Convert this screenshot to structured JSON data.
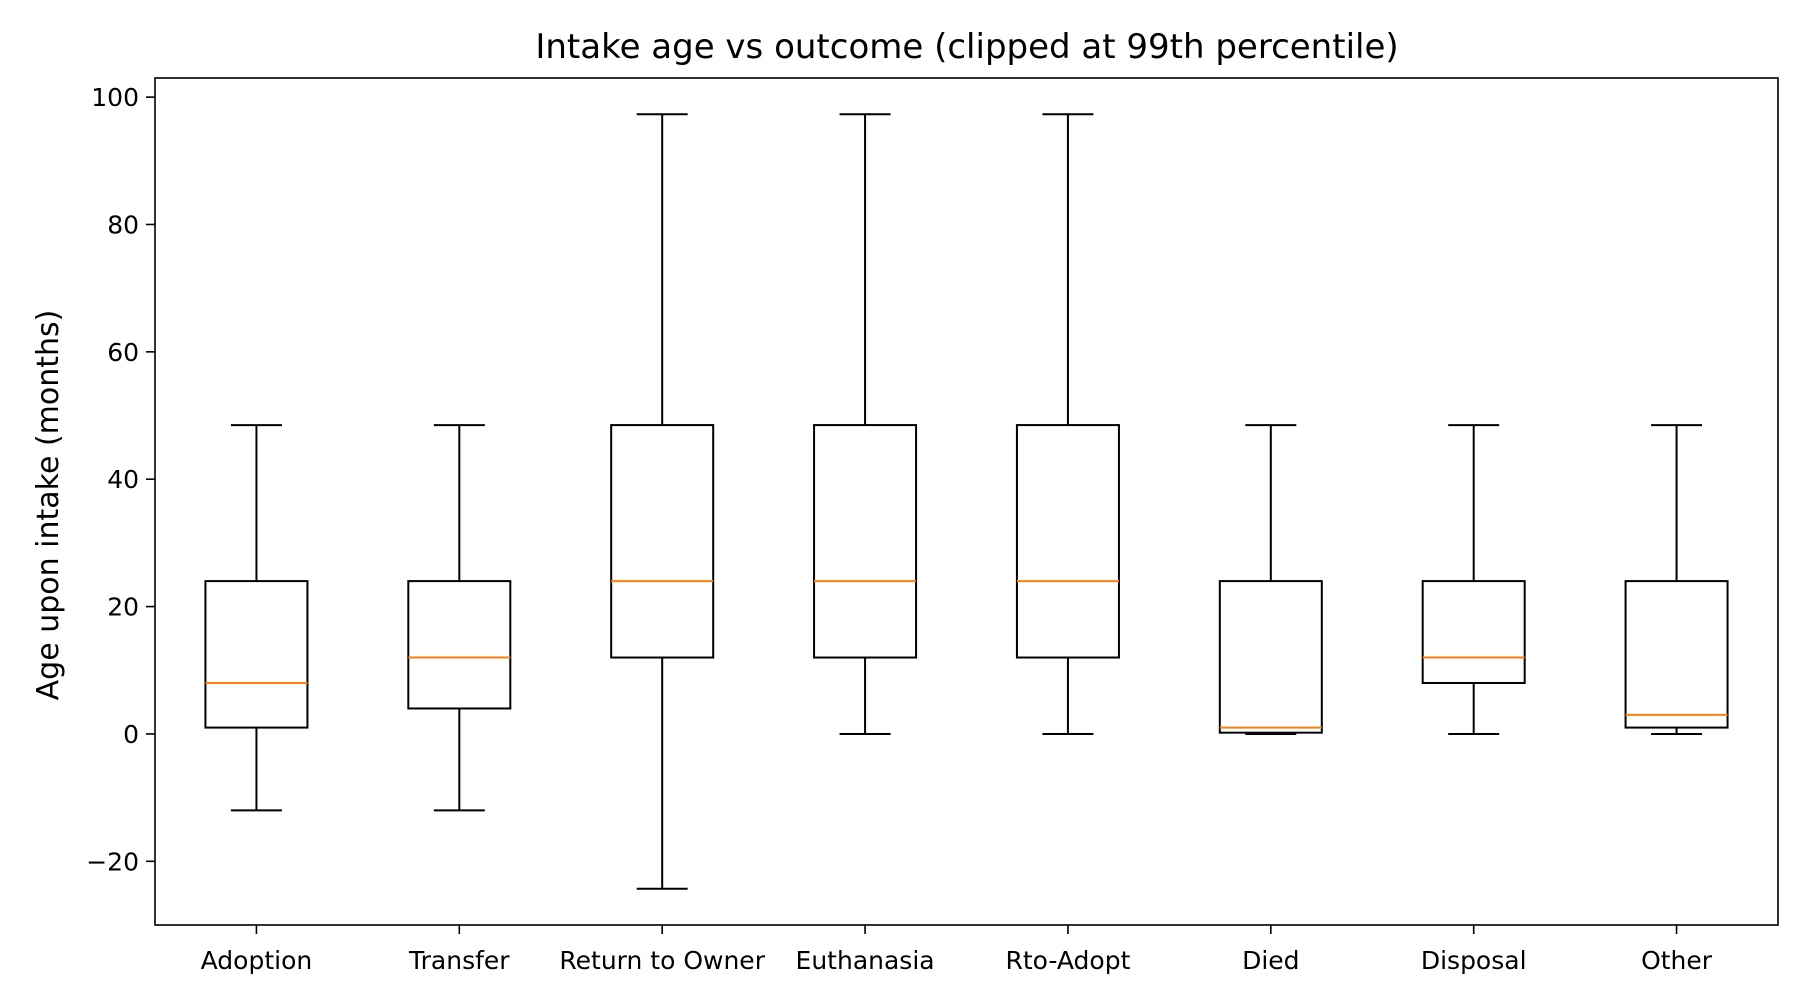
{
  "chart_data": {
    "type": "boxplot",
    "title": "Intake age vs outcome (clipped at 99th percentile)",
    "xlabel": "",
    "ylabel": "Age upon intake (months)",
    "ylim": [
      -30,
      103
    ],
    "yticks": [
      -20,
      0,
      20,
      40,
      60,
      80,
      100
    ],
    "grid": false,
    "colors": {
      "box": "#000000",
      "median": "#ff7f0e"
    },
    "categories": [
      "Adoption",
      "Transfer",
      "Return to Owner",
      "Euthanasia",
      "Rto-Adopt",
      "Died",
      "Disposal",
      "Other"
    ],
    "boxes": [
      {
        "name": "Adoption",
        "whisker_low": -12,
        "q1": 1,
        "median": 8,
        "q3": 24,
        "whisker_high": 48.5
      },
      {
        "name": "Transfer",
        "whisker_low": -12,
        "q1": 4,
        "median": 12,
        "q3": 24,
        "whisker_high": 48.5
      },
      {
        "name": "Return to Owner",
        "whisker_low": -24.3,
        "q1": 12,
        "median": 24,
        "q3": 48.5,
        "whisker_high": 97.3
      },
      {
        "name": "Euthanasia",
        "whisker_low": 0,
        "q1": 12,
        "median": 24,
        "q3": 48.5,
        "whisker_high": 97.3
      },
      {
        "name": "Rto-Adopt",
        "whisker_low": 0,
        "q1": 12,
        "median": 24,
        "q3": 48.5,
        "whisker_high": 97.3
      },
      {
        "name": "Died",
        "whisker_low": 0,
        "q1": 0.2,
        "median": 1,
        "q3": 24,
        "whisker_high": 48.5
      },
      {
        "name": "Disposal",
        "whisker_low": 0,
        "q1": 8,
        "median": 12,
        "q3": 24,
        "whisker_high": 48.5
      },
      {
        "name": "Other",
        "whisker_low": 0,
        "q1": 1,
        "median": 3,
        "q3": 24,
        "whisker_high": 48.5
      }
    ]
  }
}
